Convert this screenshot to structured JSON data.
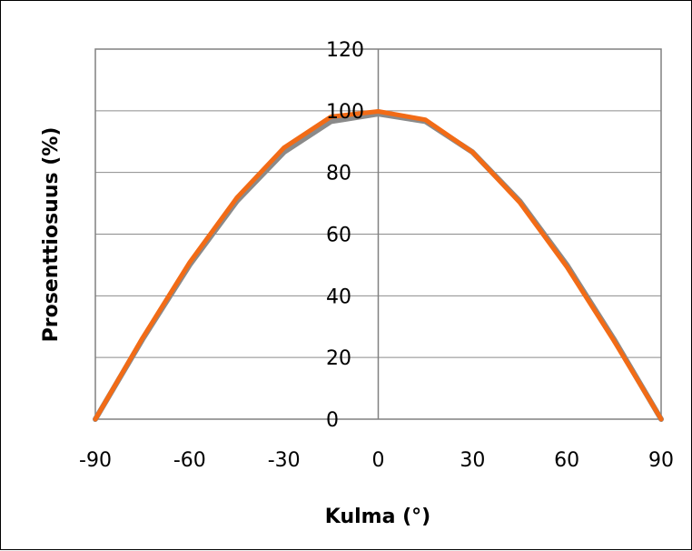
{
  "chart_data": {
    "type": "line",
    "title": "",
    "xlabel": "Kulma (°)",
    "ylabel": "Prosenttiosuus (%)",
    "xlim": [
      -90,
      90
    ],
    "ylim": [
      0,
      120
    ],
    "xticks": [
      -90,
      -60,
      -30,
      0,
      30,
      60,
      90
    ],
    "yticks": [
      0,
      20,
      40,
      60,
      80,
      100,
      120
    ],
    "grid": "horizontal",
    "legend": "none",
    "series": [
      {
        "color": "#8a8a8a",
        "x": [
          -90,
          -75,
          -60,
          -45,
          -30,
          -15,
          0,
          15,
          30,
          45,
          60,
          75,
          90
        ],
        "values": [
          0,
          25.9,
          50,
          70.7,
          86.6,
          96.6,
          99,
          96.6,
          86.6,
          70.7,
          50,
          25.9,
          0
        ]
      },
      {
        "color": "#f26b16",
        "x": [
          -90,
          -75,
          -60,
          -45,
          -30,
          -15,
          0,
          15,
          30,
          45,
          60,
          75,
          90
        ],
        "values": [
          0,
          26.3,
          50.8,
          71.8,
          88,
          98.1,
          99.8,
          97.1,
          86.6,
          70.3,
          49.4,
          25.4,
          0
        ]
      }
    ]
  }
}
